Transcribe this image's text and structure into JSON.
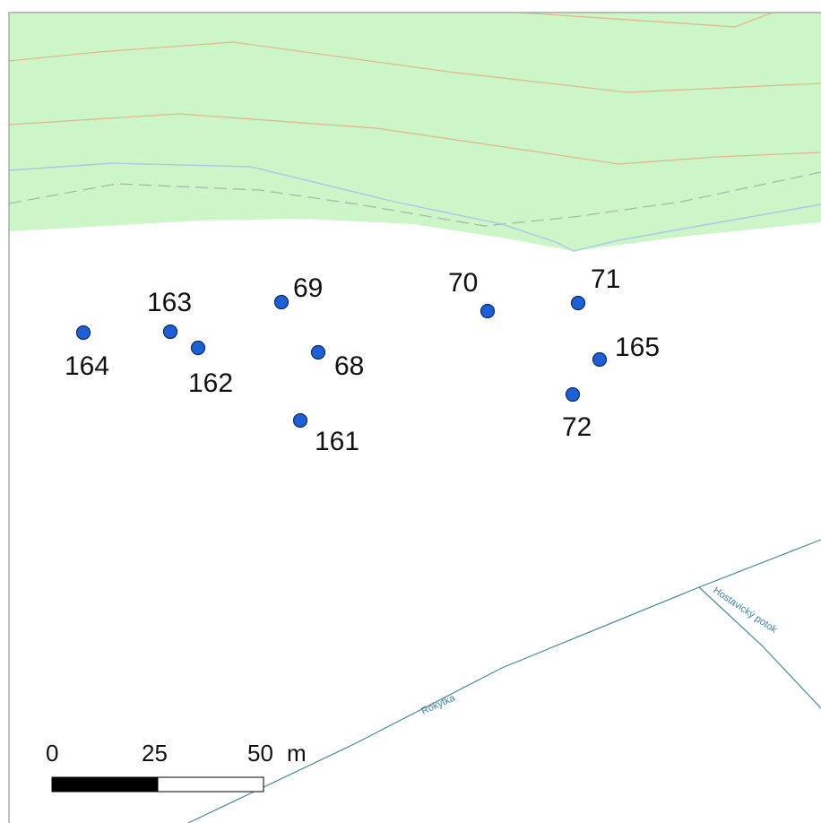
{
  "map": {
    "colors": {
      "forest": "#ccf5c8",
      "contour": "#e0b98a",
      "contour_light": "#b8d4a0",
      "boundary_blue": "#a8c8e8",
      "dashed": "#a8b8a8",
      "stream": "#4a8a96",
      "point_fill": "#1f5fd6",
      "point_stroke": "#0a2a66",
      "frame": "#9a9a9a"
    },
    "points": [
      {
        "id": "164",
        "label": "164"
      },
      {
        "id": "163",
        "label": "163"
      },
      {
        "id": "162",
        "label": "162"
      },
      {
        "id": "69",
        "label": "69"
      },
      {
        "id": "68",
        "label": "68"
      },
      {
        "id": "161",
        "label": "161"
      },
      {
        "id": "70",
        "label": "70"
      },
      {
        "id": "71",
        "label": "71"
      },
      {
        "id": "165",
        "label": "165"
      },
      {
        "id": "72",
        "label": "72"
      }
    ],
    "streams": [
      {
        "id": "rokytka",
        "label": "Rokytka"
      },
      {
        "id": "hostavicky",
        "label": "Hostavický potok"
      }
    ],
    "scale_bar": {
      "ticks": [
        "0",
        "25",
        "50"
      ],
      "unit": "m"
    }
  }
}
